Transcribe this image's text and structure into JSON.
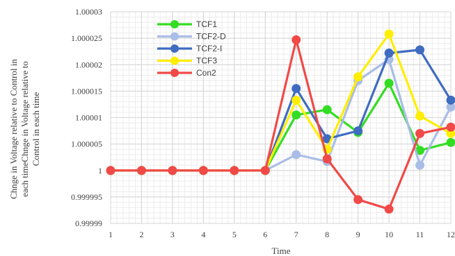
{
  "chart_data": {
    "type": "line",
    "title": "",
    "xlabel": "Time",
    "ylabel": "Chnge in Voltage relative to Control in each timeChnge in Voltage relative to Control in each time",
    "ylabel_lines": [
      "Chnge in Voltage relative to Control in",
      "each timeChnge in Voltage relative to",
      "Control in each time"
    ],
    "ylim": [
      0.99999,
      1.00003
    ],
    "y_ticks": [
      "0.99999",
      "0.999995",
      "1",
      "1.000005",
      "1.00001",
      "1.000015",
      "1.00002",
      "1.000025",
      "1.00003"
    ],
    "y_tick_values": [
      0.99999,
      0.999995,
      1,
      1.000005,
      1.00001,
      1.000015,
      1.00002,
      1.000025,
      1.00003
    ],
    "categories": [
      "1",
      "2",
      "3",
      "4",
      "5",
      "6",
      "7",
      "8",
      "9",
      "10",
      "11",
      "12"
    ],
    "grid": true,
    "legend_position": "top-left",
    "series": [
      {
        "name": "TCF1",
        "color": "#33dd22",
        "values": [
          1,
          1,
          1,
          1,
          1,
          1,
          1.0000105,
          1.0000115,
          1.0000072,
          1.0000165,
          1.0000038,
          1.0000053
        ]
      },
      {
        "name": "TCF2-D",
        "color": "#a9bde6",
        "values": [
          1,
          1,
          1,
          1,
          1,
          1,
          1.000003,
          1.0000017,
          1.000017,
          1.000021,
          1.000001,
          1.000012
        ]
      },
      {
        "name": "TCF2-I",
        "color": "#3f6cc0",
        "values": [
          1,
          1,
          1,
          1,
          1,
          1,
          1.0000155,
          1.000006,
          1.0000075,
          1.0000222,
          1.0000228,
          1.0000133
        ]
      },
      {
        "name": "TCF3",
        "color": "#ffee00",
        "values": [
          1,
          1,
          1,
          1,
          1,
          1,
          1.0000133,
          1.000004,
          1.0000177,
          1.0000258,
          1.0000103,
          1.000007
        ]
      },
      {
        "name": "Con2",
        "color": "#f04a48",
        "values": [
          1,
          1,
          1,
          1,
          1,
          1,
          1.0000247,
          1.0000022,
          0.9999945,
          0.9999927,
          1.000007,
          1.0000082
        ]
      }
    ]
  }
}
